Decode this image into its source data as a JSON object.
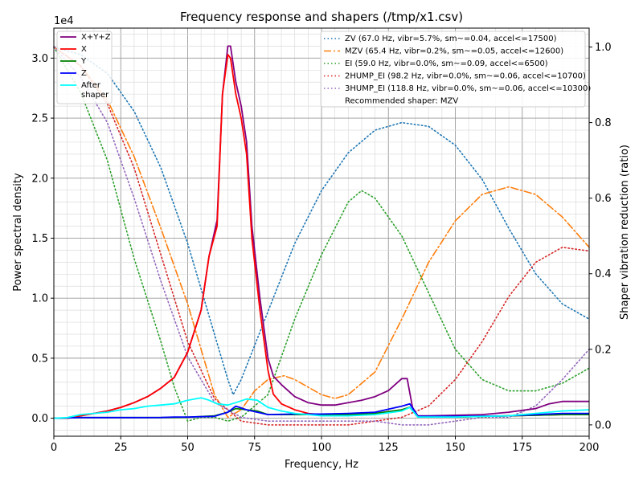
{
  "chart_data": {
    "type": "line",
    "title": "Frequency response and shapers (/tmp/x1.csv)",
    "xlabel": "Frequency, Hz",
    "ylabel": "Power spectral density",
    "y2label": "Shaper vibration reduction (ratio)",
    "y_multiplier": "1e4",
    "xlim": [
      0,
      200
    ],
    "ylim": [
      -1500,
      32500
    ],
    "y2lim": [
      -0.03,
      1.05
    ],
    "x_ticks": [
      "0",
      "25",
      "50",
      "75",
      "100",
      "125",
      "150",
      "175",
      "200"
    ],
    "y_ticks": [
      "0.0",
      "0.5",
      "1.0",
      "1.5",
      "2.0",
      "2.5",
      "3.0"
    ],
    "y2_ticks": [
      "0.0",
      "0.2",
      "0.4",
      "0.6",
      "0.8",
      "1.0"
    ],
    "grid": "major and minor",
    "legend_left_placement": "top-left",
    "legend_right_placement": "top-right",
    "psd_series": [
      {
        "name": "X+Y+Z",
        "color": "#800080",
        "style": "solid",
        "points": [
          [
            0,
            0
          ],
          [
            5,
            0
          ],
          [
            10,
            200
          ],
          [
            15,
            400
          ],
          [
            20,
            600
          ],
          [
            25,
            900
          ],
          [
            30,
            1300
          ],
          [
            35,
            1800
          ],
          [
            40,
            2500
          ],
          [
            45,
            3400
          ],
          [
            50,
            5500
          ],
          [
            55,
            9000
          ],
          [
            58,
            13500
          ],
          [
            61,
            16500
          ],
          [
            63,
            27000
          ],
          [
            65,
            31000
          ],
          [
            66,
            31000
          ],
          [
            68,
            28000
          ],
          [
            70,
            26000
          ],
          [
            72,
            23000
          ],
          [
            74,
            16000
          ],
          [
            77,
            10000
          ],
          [
            80,
            5000
          ],
          [
            82,
            3500
          ],
          [
            85,
            2800
          ],
          [
            90,
            1800
          ],
          [
            95,
            1300
          ],
          [
            100,
            1100
          ],
          [
            105,
            1100
          ],
          [
            110,
            1300
          ],
          [
            115,
            1500
          ],
          [
            120,
            1800
          ],
          [
            125,
            2300
          ],
          [
            130,
            3300
          ],
          [
            132,
            3300
          ],
          [
            134,
            900
          ],
          [
            136,
            200
          ],
          [
            140,
            200
          ],
          [
            150,
            250
          ],
          [
            160,
            300
          ],
          [
            170,
            500
          ],
          [
            180,
            800
          ],
          [
            185,
            1200
          ],
          [
            190,
            1400
          ],
          [
            195,
            1400
          ],
          [
            200,
            1400
          ]
        ]
      },
      {
        "name": "X",
        "color": "#ff0000",
        "style": "solid",
        "points": [
          [
            0,
            0
          ],
          [
            5,
            0
          ],
          [
            10,
            200
          ],
          [
            15,
            400
          ],
          [
            20,
            600
          ],
          [
            25,
            900
          ],
          [
            30,
            1300
          ],
          [
            35,
            1800
          ],
          [
            40,
            2500
          ],
          [
            45,
            3400
          ],
          [
            50,
            5500
          ],
          [
            55,
            9000
          ],
          [
            58,
            13500
          ],
          [
            61,
            16000
          ],
          [
            63,
            27000
          ],
          [
            65,
            30300
          ],
          [
            66,
            30000
          ],
          [
            68,
            27000
          ],
          [
            70,
            25000
          ],
          [
            72,
            22000
          ],
          [
            74,
            15000
          ],
          [
            77,
            9000
          ],
          [
            80,
            4000
          ],
          [
            82,
            2000
          ],
          [
            85,
            1200
          ],
          [
            90,
            700
          ],
          [
            95,
            400
          ],
          [
            100,
            300
          ],
          [
            110,
            300
          ],
          [
            120,
            400
          ],
          [
            130,
            700
          ],
          [
            133,
            900
          ],
          [
            136,
            100
          ],
          [
            150,
            100
          ],
          [
            170,
            200
          ],
          [
            190,
            300
          ],
          [
            200,
            300
          ]
        ]
      },
      {
        "name": "Y",
        "color": "#008000",
        "style": "solid",
        "points": [
          [
            0,
            0
          ],
          [
            10,
            50
          ],
          [
            20,
            50
          ],
          [
            30,
            50
          ],
          [
            40,
            50
          ],
          [
            50,
            80
          ],
          [
            60,
            200
          ],
          [
            65,
            500
          ],
          [
            68,
            800
          ],
          [
            72,
            700
          ],
          [
            76,
            600
          ],
          [
            80,
            300
          ],
          [
            90,
            300
          ],
          [
            100,
            300
          ],
          [
            110,
            300
          ],
          [
            120,
            400
          ],
          [
            130,
            700
          ],
          [
            133,
            900
          ],
          [
            136,
            100
          ],
          [
            150,
            100
          ],
          [
            170,
            200
          ],
          [
            190,
            300
          ],
          [
            200,
            300
          ]
        ]
      },
      {
        "name": "Z",
        "color": "#0000ff",
        "style": "solid",
        "points": [
          [
            0,
            0
          ],
          [
            10,
            50
          ],
          [
            20,
            50
          ],
          [
            30,
            50
          ],
          [
            40,
            60
          ],
          [
            45,
            100
          ],
          [
            50,
            100
          ],
          [
            60,
            150
          ],
          [
            65,
            500
          ],
          [
            68,
            1000
          ],
          [
            72,
            700
          ],
          [
            76,
            500
          ],
          [
            80,
            300
          ],
          [
            90,
            350
          ],
          [
            100,
            350
          ],
          [
            110,
            400
          ],
          [
            120,
            500
          ],
          [
            130,
            1000
          ],
          [
            133,
            1200
          ],
          [
            136,
            150
          ],
          [
            150,
            150
          ],
          [
            170,
            200
          ],
          [
            190,
            400
          ],
          [
            200,
            400
          ]
        ]
      },
      {
        "name": "After\nshaper",
        "color": "#00ffff",
        "style": "solid",
        "points": [
          [
            0,
            0
          ],
          [
            5,
            50
          ],
          [
            10,
            300
          ],
          [
            15,
            400
          ],
          [
            20,
            500
          ],
          [
            25,
            700
          ],
          [
            30,
            800
          ],
          [
            35,
            1000
          ],
          [
            40,
            1100
          ],
          [
            45,
            1200
          ],
          [
            50,
            1500
          ],
          [
            55,
            1700
          ],
          [
            58,
            1500
          ],
          [
            61,
            1200
          ],
          [
            65,
            1100
          ],
          [
            68,
            1300
          ],
          [
            72,
            1600
          ],
          [
            76,
            1500
          ],
          [
            80,
            900
          ],
          [
            85,
            600
          ],
          [
            90,
            400
          ],
          [
            100,
            200
          ],
          [
            110,
            200
          ],
          [
            120,
            300
          ],
          [
            130,
            600
          ],
          [
            133,
            900
          ],
          [
            136,
            100
          ],
          [
            150,
            100
          ],
          [
            170,
            200
          ],
          [
            180,
            400
          ],
          [
            190,
            600
          ],
          [
            200,
            700
          ]
        ]
      }
    ],
    "shaper_series": [
      {
        "name": "ZV (67.0 Hz, vibr=5.7%, sm~=0.04, accel<=17500)",
        "color": "#1f77b4",
        "style": "dotted",
        "points": [
          [
            0,
            1.0
          ],
          [
            10,
            0.98
          ],
          [
            20,
            0.93
          ],
          [
            30,
            0.83
          ],
          [
            40,
            0.68
          ],
          [
            50,
            0.48
          ],
          [
            55,
            0.36
          ],
          [
            60,
            0.24
          ],
          [
            65,
            0.12
          ],
          [
            67,
            0.08
          ],
          [
            70,
            0.12
          ],
          [
            75,
            0.21
          ],
          [
            80,
            0.3
          ],
          [
            90,
            0.48
          ],
          [
            100,
            0.62
          ],
          [
            110,
            0.72
          ],
          [
            120,
            0.78
          ],
          [
            130,
            0.8
          ],
          [
            140,
            0.79
          ],
          [
            150,
            0.74
          ],
          [
            160,
            0.65
          ],
          [
            170,
            0.52
          ],
          [
            180,
            0.4
          ],
          [
            190,
            0.32
          ],
          [
            200,
            0.28
          ]
        ]
      },
      {
        "name": "MZV (65.4 Hz, vibr=0.2%, sm~=0.05, accel<=12600)",
        "color": "#ff7f0e",
        "style": "dashdot",
        "points": [
          [
            0,
            1.0
          ],
          [
            10,
            0.95
          ],
          [
            20,
            0.86
          ],
          [
            30,
            0.71
          ],
          [
            40,
            0.52
          ],
          [
            50,
            0.32
          ],
          [
            55,
            0.2
          ],
          [
            60,
            0.08
          ],
          [
            65,
            0.02
          ],
          [
            70,
            0.04
          ],
          [
            75,
            0.09
          ],
          [
            80,
            0.12
          ],
          [
            86,
            0.13
          ],
          [
            90,
            0.12
          ],
          [
            95,
            0.1
          ],
          [
            100,
            0.08
          ],
          [
            105,
            0.07
          ],
          [
            110,
            0.08
          ],
          [
            120,
            0.14
          ],
          [
            130,
            0.28
          ],
          [
            140,
            0.43
          ],
          [
            150,
            0.54
          ],
          [
            160,
            0.61
          ],
          [
            170,
            0.63
          ],
          [
            180,
            0.61
          ],
          [
            190,
            0.55
          ],
          [
            200,
            0.47
          ]
        ]
      },
      {
        "name": "EI (59.0 Hz, vibr=0.0%, sm~=0.09, accel<=6500)",
        "color": "#2ca02c",
        "style": "dotted",
        "points": [
          [
            0,
            1.0
          ],
          [
            10,
            0.88
          ],
          [
            20,
            0.7
          ],
          [
            30,
            0.44
          ],
          [
            40,
            0.22
          ],
          [
            45,
            0.1
          ],
          [
            50,
            0.01
          ],
          [
            55,
            0.02
          ],
          [
            60,
            0.02
          ],
          [
            65,
            0.01
          ],
          [
            70,
            0.02
          ],
          [
            80,
            0.08
          ],
          [
            90,
            0.28
          ],
          [
            100,
            0.45
          ],
          [
            110,
            0.59
          ],
          [
            115,
            0.62
          ],
          [
            120,
            0.6
          ],
          [
            130,
            0.5
          ],
          [
            140,
            0.35
          ],
          [
            150,
            0.2
          ],
          [
            160,
            0.12
          ],
          [
            170,
            0.09
          ],
          [
            180,
            0.09
          ],
          [
            190,
            0.11
          ],
          [
            200,
            0.15
          ]
        ]
      },
      {
        "name": "2HUMP_EI (98.2 Hz, vibr=0.0%, sm~=0.06, accel<=10700)",
        "color": "#d62728",
        "style": "dotted",
        "points": [
          [
            0,
            1.0
          ],
          [
            10,
            0.95
          ],
          [
            20,
            0.85
          ],
          [
            30,
            0.68
          ],
          [
            40,
            0.45
          ],
          [
            50,
            0.22
          ],
          [
            60,
            0.07
          ],
          [
            70,
            0.01
          ],
          [
            80,
            0.0
          ],
          [
            90,
            0.0
          ],
          [
            100,
            0.0
          ],
          [
            110,
            0.0
          ],
          [
            120,
            0.01
          ],
          [
            130,
            0.02
          ],
          [
            140,
            0.05
          ],
          [
            150,
            0.12
          ],
          [
            160,
            0.22
          ],
          [
            170,
            0.34
          ],
          [
            180,
            0.43
          ],
          [
            190,
            0.47
          ],
          [
            200,
            0.46
          ]
        ]
      },
      {
        "name": "3HUMP_EI (118.8 Hz, vibr=0.0%, sm~=0.06, accel<=10300)",
        "color": "#9467bd",
        "style": "dotted",
        "points": [
          [
            0,
            1.0
          ],
          [
            10,
            0.92
          ],
          [
            20,
            0.8
          ],
          [
            30,
            0.6
          ],
          [
            40,
            0.38
          ],
          [
            50,
            0.18
          ],
          [
            60,
            0.06
          ],
          [
            70,
            0.02
          ],
          [
            80,
            0.01
          ],
          [
            90,
            0.01
          ],
          [
            100,
            0.01
          ],
          [
            110,
            0.01
          ],
          [
            120,
            0.01
          ],
          [
            130,
            0.0
          ],
          [
            140,
            0.0
          ],
          [
            150,
            0.01
          ],
          [
            160,
            0.02
          ],
          [
            170,
            0.02
          ],
          [
            180,
            0.05
          ],
          [
            190,
            0.12
          ],
          [
            200,
            0.2
          ]
        ]
      }
    ],
    "annotation": "Recommended shaper: MZV"
  }
}
